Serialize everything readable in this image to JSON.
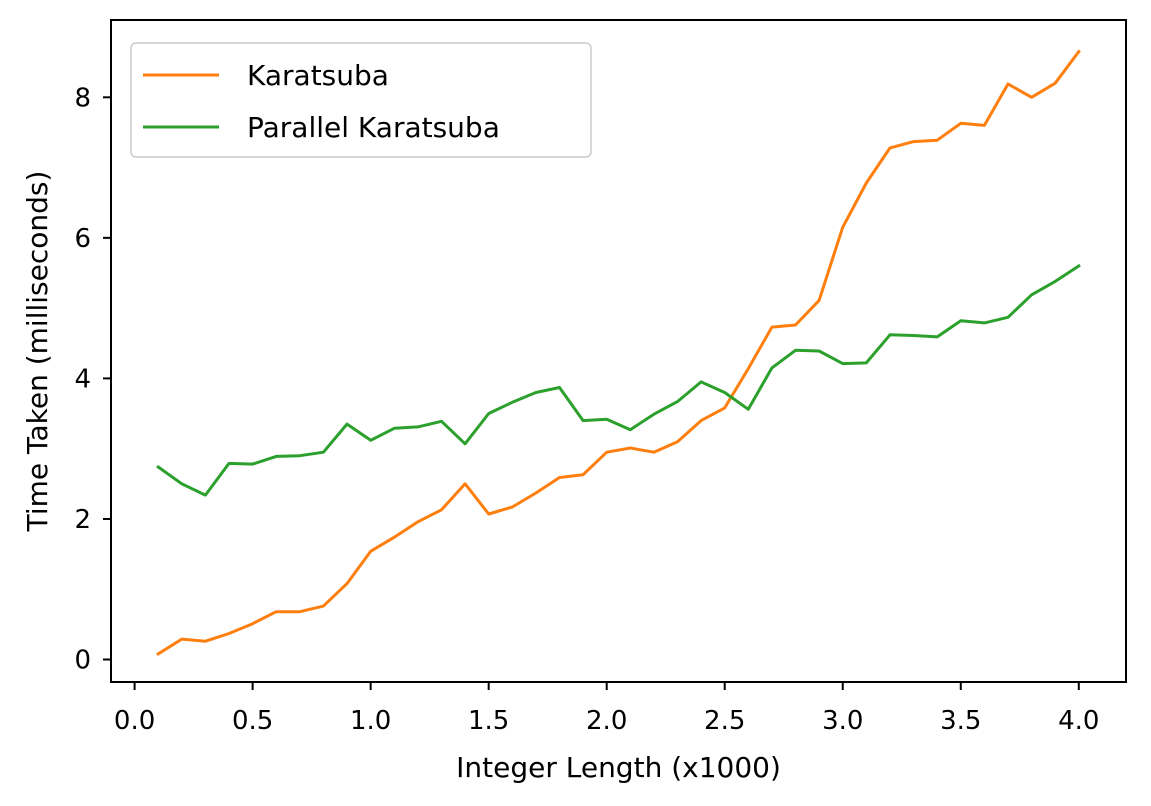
{
  "chart_data": {
    "type": "line",
    "title": "",
    "xlabel": "Integer Length (x1000)",
    "ylabel": "Time Taken (milliseconds)",
    "xlim": [
      -0.1,
      4.2
    ],
    "ylim": [
      -0.32,
      9.1
    ],
    "x_ticks": [
      0.0,
      0.5,
      1.0,
      1.5,
      2.0,
      2.5,
      3.0,
      3.5,
      4.0
    ],
    "x_tick_labels": [
      "0.0",
      "0.5",
      "1.0",
      "1.5",
      "2.0",
      "2.5",
      "3.0",
      "3.5",
      "4.0"
    ],
    "y_ticks": [
      0,
      2,
      4,
      6,
      8
    ],
    "y_tick_labels": [
      "0",
      "2",
      "4",
      "6",
      "8"
    ],
    "grid": false,
    "legend_position": "top-left",
    "x": [
      0.1,
      0.2,
      0.3,
      0.4,
      0.5,
      0.6,
      0.7,
      0.8,
      0.9,
      1.0,
      1.1,
      1.2,
      1.3,
      1.4,
      1.5,
      1.6,
      1.7,
      1.8,
      1.9,
      2.0,
      2.1,
      2.2,
      2.3,
      2.4,
      2.5,
      2.6,
      2.7,
      2.8,
      2.9,
      3.0,
      3.1,
      3.2,
      3.3,
      3.4,
      3.5,
      3.6,
      3.7,
      3.8,
      3.9,
      4.0
    ],
    "series": [
      {
        "name": "Karatsuba",
        "color": "#ff7f0e",
        "values": [
          0.08,
          0.29,
          0.26,
          0.37,
          0.51,
          0.68,
          0.68,
          0.76,
          1.08,
          1.54,
          1.74,
          1.96,
          2.13,
          2.5,
          2.07,
          2.17,
          2.37,
          2.59,
          2.63,
          2.95,
          3.01,
          2.95,
          3.1,
          3.4,
          3.58,
          4.14,
          4.73,
          4.76,
          5.11,
          6.15,
          6.78,
          7.28,
          7.37,
          7.39,
          7.63,
          7.6,
          8.19,
          8.0,
          8.2,
          8.65
        ]
      },
      {
        "name": "Parallel Karatsuba",
        "color": "#2ca02c",
        "values": [
          2.74,
          2.5,
          2.34,
          2.79,
          2.78,
          2.89,
          2.9,
          2.95,
          3.35,
          3.12,
          3.29,
          3.31,
          3.39,
          3.07,
          3.5,
          3.66,
          3.8,
          3.87,
          3.4,
          3.42,
          3.27,
          3.49,
          3.67,
          3.95,
          3.8,
          3.56,
          4.15,
          4.4,
          4.39,
          4.21,
          4.22,
          4.62,
          4.61,
          4.59,
          4.82,
          4.79,
          4.87,
          5.19,
          5.38,
          5.6
        ]
      }
    ]
  }
}
